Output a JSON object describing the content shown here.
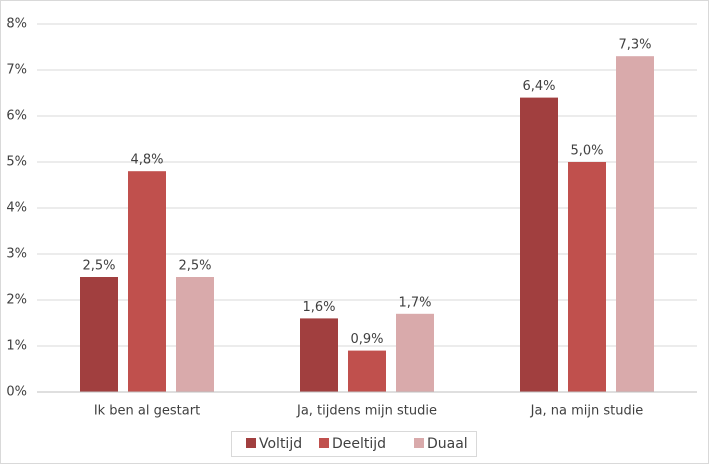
{
  "chart_data": {
    "type": "bar",
    "categories": [
      "Ik ben al gestart",
      "Ja, tijdens mijn studie",
      "Ja, na mijn studie"
    ],
    "series": [
      {
        "name": "Voltijd",
        "color": "#a13f3f",
        "values": [
          2.5,
          1.6,
          6.4
        ],
        "value_labels": [
          "2,5%",
          "1,6%",
          "6,4%"
        ]
      },
      {
        "name": "Deeltijd",
        "color": "#c0504d",
        "values": [
          4.8,
          0.9,
          5.0
        ],
        "value_labels": [
          "4,8%",
          "0,9%",
          "5,0%"
        ]
      },
      {
        "name": "Duaal",
        "color": "#d9aaab",
        "values": [
          2.5,
          1.7,
          7.3
        ],
        "value_labels": [
          "2,5%",
          "1,7%",
          "7,3%"
        ]
      }
    ],
    "ylim": [
      0,
      8
    ],
    "yticks": [
      {
        "value": 0,
        "label": "0%"
      },
      {
        "value": 1,
        "label": "1%"
      },
      {
        "value": 2,
        "label": "2%"
      },
      {
        "value": 3,
        "label": "3%"
      },
      {
        "value": 4,
        "label": "4%"
      },
      {
        "value": 5,
        "label": "5%"
      },
      {
        "value": 6,
        "label": "6%"
      },
      {
        "value": 7,
        "label": "7%"
      },
      {
        "value": 8,
        "label": "8%"
      }
    ],
    "grid": true,
    "legend": "bottom"
  }
}
